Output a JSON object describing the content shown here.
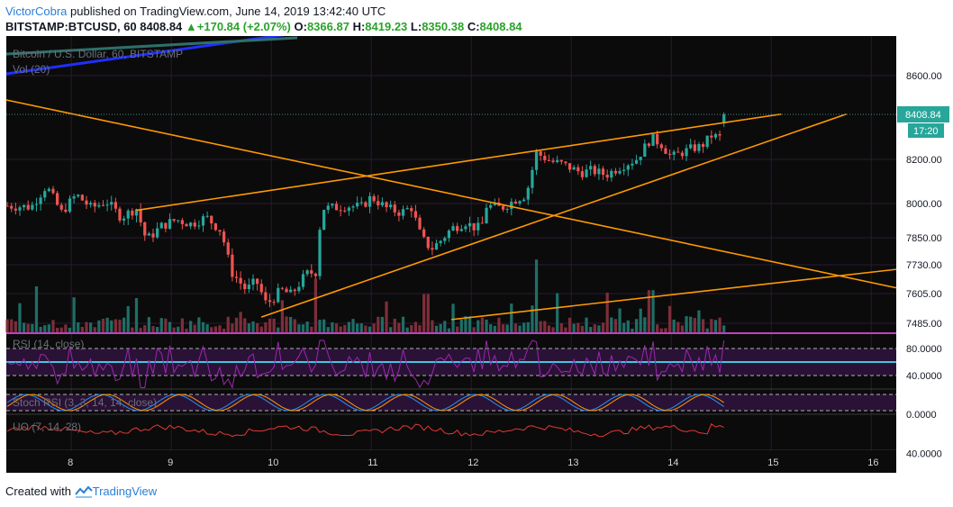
{
  "header": {
    "author": "VictorCobra",
    "published": " published on TradingView.com, June 14, 2019 13:42:40 UTC",
    "symbol": "BITSTAMP:BTCUSD, 60",
    "last": "8408.84",
    "arrow": "▲",
    "change": "+170.84 (+2.07%)",
    "o_label": "O:",
    "o": "8366.87",
    "h_label": "H:",
    "h": "8419.23",
    "l_label": "L:",
    "l": "8350.38",
    "c_label": "C:",
    "c": "8408.84"
  },
  "footer": {
    "created_with": "Created with",
    "brand": "TradingView"
  },
  "colors": {
    "background": "#0b0b0b",
    "grid": "#2b1933",
    "up": "#27a69a",
    "down": "#ef5350",
    "vol_up": "#1e6e67",
    "vol_down": "#7d2e3a",
    "trend": "#ff9900",
    "price_label_bg": "#27a69a",
    "axis_text": "#d1d4dc",
    "rsi": "#9c27b0",
    "rsi_band": "#2a1236",
    "stoch_k": "#2196f3",
    "stoch_d": "#ff9800",
    "uo": "#e53935",
    "magenta_line": "#c040c0",
    "cyan_line": "#40c8e0",
    "blue_line": "#1f2fff",
    "teal_line": "#2f6f6a"
  },
  "legends": {
    "main": "Bitcoin / U.S. Dollar, 60, BITSTAMP",
    "vol": "Vol (20)",
    "rsi": "RSI (14, close)",
    "stoch": "Stoch RSI (3, 3, 14, 14, close)",
    "uo": "UO (7, 14, 28)"
  },
  "price_badge": {
    "price": "8408.84",
    "countdown": "17:20"
  },
  "chart_data": {
    "type": "candlestick",
    "title": "Bitcoin / U.S. Dollar, 60, BITSTAMP",
    "x_ticks": [
      "8",
      "9",
      "10",
      "11",
      "12",
      "13",
      "14",
      "15",
      "16"
    ],
    "x_range": [
      7.35,
      16.25
    ],
    "y_ticks": [
      "8600.00",
      "8200.00",
      "8000.00",
      "7850.00",
      "7730.00",
      "7605.00",
      "7485.00"
    ],
    "y_tick_values": [
      8600,
      8200,
      8000,
      7850,
      7730,
      7605,
      7485
    ],
    "close_path": [
      [
        7.36,
        7990
      ],
      [
        7.6,
        7985
      ],
      [
        7.75,
        8080
      ],
      [
        7.9,
        7960
      ],
      [
        8.05,
        8040
      ],
      [
        8.2,
        7980
      ],
      [
        8.35,
        8010
      ],
      [
        8.5,
        7940
      ],
      [
        8.65,
        7980
      ],
      [
        8.75,
        7840
      ],
      [
        8.9,
        7900
      ],
      [
        9.05,
        7930
      ],
      [
        9.2,
        7910
      ],
      [
        9.35,
        7940
      ],
      [
        9.5,
        7880
      ],
      [
        9.6,
        7700
      ],
      [
        9.75,
        7620
      ],
      [
        9.85,
        7660
      ],
      [
        9.95,
        7560
      ],
      [
        10.1,
        7620
      ],
      [
        10.2,
        7600
      ],
      [
        10.35,
        7690
      ],
      [
        10.45,
        7700
      ],
      [
        10.5,
        7980
      ],
      [
        10.6,
        7980
      ],
      [
        10.75,
        7990
      ],
      [
        10.9,
        7985
      ],
      [
        11.0,
        8030
      ],
      [
        11.15,
        7980
      ],
      [
        11.3,
        7960
      ],
      [
        11.4,
        7985
      ],
      [
        11.5,
        7850
      ],
      [
        11.6,
        7800
      ],
      [
        11.7,
        7840
      ],
      [
        11.8,
        7890
      ],
      [
        11.95,
        7920
      ],
      [
        12.0,
        7900
      ],
      [
        12.1,
        7890
      ],
      [
        12.15,
        7990
      ],
      [
        12.3,
        7980
      ],
      [
        12.45,
        8020
      ],
      [
        12.55,
        8040
      ],
      [
        12.65,
        8230
      ],
      [
        12.8,
        8190
      ],
      [
        12.9,
        8180
      ],
      [
        13.0,
        8160
      ],
      [
        13.1,
        8140
      ],
      [
        13.2,
        8150
      ],
      [
        13.35,
        8130
      ],
      [
        13.5,
        8170
      ],
      [
        13.65,
        8200
      ],
      [
        13.8,
        8300
      ],
      [
        13.9,
        8270
      ],
      [
        14.0,
        8210
      ],
      [
        14.1,
        8230
      ],
      [
        14.2,
        8250
      ],
      [
        14.3,
        8260
      ],
      [
        14.4,
        8310
      ],
      [
        14.5,
        8300
      ],
      [
        14.55,
        8408.84
      ]
    ],
    "trendlines": [
      [
        [
          7.35,
          8480
        ],
        [
          16.25,
          7630
        ]
      ],
      [
        [
          8.65,
          7970
        ],
        [
          15.1,
          8410
        ]
      ],
      [
        [
          9.9,
          7510
        ],
        [
          15.75,
          8410
        ]
      ],
      [
        [
          11.8,
          7500
        ],
        [
          16.25,
          7710
        ]
      ]
    ],
    "volume_spikes": [
      [
        12.65,
        0.95
      ],
      [
        10.45,
        0.7
      ],
      [
        7.65,
        0.6
      ],
      [
        13.8,
        0.55
      ],
      [
        11.55,
        0.5
      ]
    ],
    "rsi": {
      "levels": [
        80,
        40
      ],
      "y_ticks": [
        "80.0000",
        "40.0000"
      ],
      "range": [
        20,
        100
      ]
    },
    "stoch_rsi": {
      "y_ticks": [
        "0.0000"
      ]
    },
    "uo": {
      "y_ticks": [
        "40.0000"
      ],
      "range": [
        20,
        80
      ]
    }
  }
}
